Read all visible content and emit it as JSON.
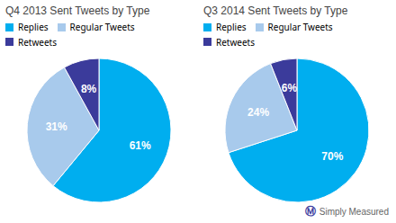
{
  "chart_data": [
    {
      "type": "pie",
      "title": "Q4 2013 Sent Tweets by Type",
      "categories": [
        "Replies",
        "Regular Tweets",
        "Retweets"
      ],
      "values": [
        61,
        31,
        8
      ],
      "value_labels": [
        "61%",
        "31%",
        "8%"
      ],
      "colors": [
        "#00AEEF",
        "#A8CAEC",
        "#3B3B9B"
      ],
      "data_labels": true,
      "legend": "top"
    },
    {
      "type": "pie",
      "title": "Q3 2014 Sent Tweets by Type",
      "categories": [
        "Replies",
        "Regular Tweets",
        "Retweets"
      ],
      "values": [
        70,
        24,
        6
      ],
      "value_labels": [
        "70%",
        "24%",
        "6%"
      ],
      "colors": [
        "#00AEEF",
        "#A8CAEC",
        "#3B3B9B"
      ],
      "data_labels": true,
      "legend": "top",
      "annotations": [
        "Ⓜ",
        "Simply Measured"
      ]
    }
  ]
}
